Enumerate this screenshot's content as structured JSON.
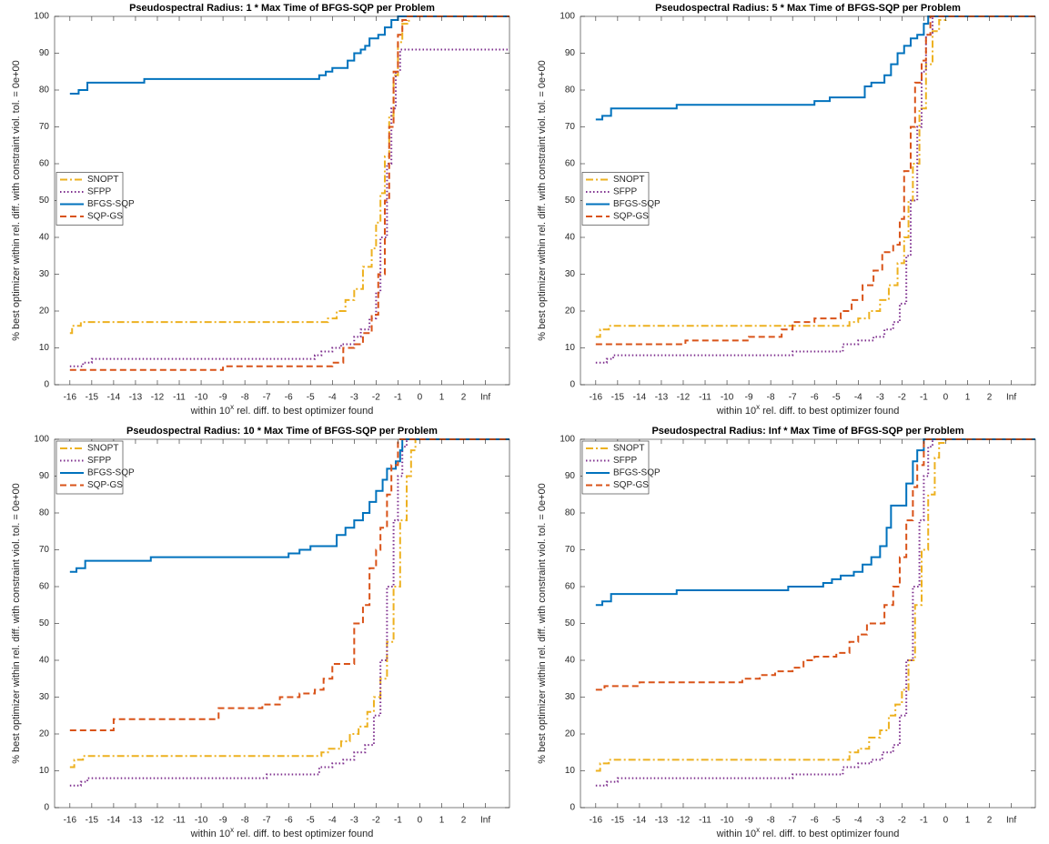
{
  "chart_data": [
    {
      "type": "line",
      "title": "Pseudospectral Radius: 1 * Max Time of BFGS-SQP per Problem",
      "xlabel": [
        "within 10",
        "x",
        " rel. diff. to best optimizer found"
      ],
      "ylabel": "% best optimizer within rel. diff. with constraint viol. tol. = 0e+00",
      "xlim": [
        -16.7,
        4.1
      ],
      "ylim": [
        0,
        100
      ],
      "xticks": [
        -16,
        -15,
        -14,
        -13,
        -12,
        -11,
        -10,
        -9,
        -8,
        -7,
        -6,
        -5,
        -4,
        -3,
        -2,
        -1,
        0,
        1,
        2,
        {
          "value": 3,
          "label": "Inf"
        }
      ],
      "yticks": [
        0,
        10,
        20,
        30,
        40,
        50,
        60,
        70,
        80,
        90,
        100
      ],
      "legend": "west",
      "series": [
        {
          "name": "SNOPT",
          "color": "#EDB120",
          "linestyle": "-.",
          "x": [
            -16,
            -15.9,
            -15.5,
            -4.8,
            -4.2,
            -3.8,
            -3.4,
            -3,
            -2.6,
            -2.2,
            -2,
            -1.8,
            -1.6,
            -1.4,
            -1.2,
            -1,
            -0.8,
            -0.5,
            4.1
          ],
          "values": [
            14,
            16,
            17,
            17,
            18,
            20,
            23,
            26,
            32,
            37,
            44,
            52,
            62,
            73,
            84,
            93,
            98,
            100,
            100
          ]
        },
        {
          "name": "SFPP",
          "color": "#7E2F8E",
          "linestyle": ":",
          "x": [
            -16,
            -15.4,
            -15,
            -5,
            -4.8,
            -4.5,
            -4,
            -3.6,
            -3,
            -2.7,
            -2.3,
            -2,
            -1.8,
            -1.5,
            -1.3,
            -1.1,
            -0.9,
            4.1
          ],
          "values": [
            5,
            6,
            7,
            7,
            8,
            9,
            10,
            11,
            13,
            15,
            18,
            25,
            40,
            60,
            75,
            85,
            91,
            91
          ]
        },
        {
          "name": "BFGS-SQP",
          "color": "#0072BD",
          "linestyle": "-",
          "x": [
            -16,
            -15.6,
            -15.2,
            -12.6,
            -4.9,
            -4.6,
            -4.3,
            -4,
            -3.5,
            -3.3,
            -3,
            -2.7,
            -2.5,
            -2.3,
            -1.9,
            -1.6,
            -1.3,
            -1,
            4.1
          ],
          "values": [
            79,
            80,
            82,
            83,
            83,
            84,
            85,
            86,
            86,
            88,
            90,
            91,
            92,
            94,
            95,
            97,
            99,
            100,
            100
          ]
        },
        {
          "name": "SQP-GS",
          "color": "#D95319",
          "linestyle": "--",
          "x": [
            -16,
            -9.2,
            -9,
            -4.8,
            -4,
            -3.7,
            -3.5,
            -3,
            -2.6,
            -2.2,
            -1.9,
            -1.6,
            -1.4,
            -1.2,
            -1,
            -0.8,
            -0.6,
            4.1
          ],
          "values": [
            4,
            4,
            5,
            5,
            6,
            6,
            10,
            11,
            14,
            19,
            30,
            50,
            70,
            85,
            95,
            99,
            100,
            100
          ]
        }
      ]
    },
    {
      "type": "line",
      "title": "Pseudospectral Radius: 5 * Max Time of BFGS-SQP per Problem",
      "xlabel": [
        "within 10",
        "x",
        " rel. diff. to best optimizer found"
      ],
      "ylabel": "% best optimizer within rel. diff. with constraint viol. tol. = 0e+00",
      "xlim": [
        -16.7,
        4.1
      ],
      "ylim": [
        0,
        100
      ],
      "xticks": [
        -16,
        -15,
        -14,
        -13,
        -12,
        -11,
        -10,
        -9,
        -8,
        -7,
        -6,
        -5,
        -4,
        -3,
        -2,
        -1,
        0,
        1,
        2,
        {
          "value": 3,
          "label": "Inf"
        }
      ],
      "yticks": [
        0,
        10,
        20,
        30,
        40,
        50,
        60,
        70,
        80,
        90,
        100
      ],
      "legend": "west",
      "series": [
        {
          "name": "SNOPT",
          "color": "#EDB120",
          "linestyle": "-.",
          "x": [
            -16,
            -15.8,
            -15.4,
            -4.8,
            -4.4,
            -4,
            -3.5,
            -3,
            -2.6,
            -2.2,
            -1.9,
            -1.7,
            -1.5,
            -1.2,
            -0.9,
            -0.6,
            -0.3,
            0,
            4.1
          ],
          "values": [
            13,
            15,
            16,
            16,
            17,
            18,
            20,
            23,
            27,
            33,
            40,
            50,
            60,
            75,
            87,
            96,
            99,
            100,
            100
          ]
        },
        {
          "name": "SFPP",
          "color": "#7E2F8E",
          "linestyle": ":",
          "x": [
            -16,
            -15.5,
            -15.2,
            -7.2,
            -7,
            -4.9,
            -4.7,
            -4,
            -3.3,
            -2.8,
            -2.4,
            -2.1,
            -1.8,
            -1.6,
            -1.3,
            -1.1,
            -0.9,
            -0.6,
            4.1
          ],
          "values": [
            6,
            7,
            8,
            8,
            9,
            9,
            11,
            12,
            13,
            15,
            17,
            22,
            35,
            50,
            70,
            85,
            95,
            100,
            100
          ]
        },
        {
          "name": "BFGS-SQP",
          "color": "#0072BD",
          "linestyle": "-",
          "x": [
            -16,
            -15.7,
            -15.3,
            -12.5,
            -12.3,
            -6.2,
            -6,
            -5.3,
            -4,
            -3.7,
            -3.4,
            -2.8,
            -2.5,
            -2.2,
            -1.9,
            -1.6,
            -1.3,
            -1,
            -0.8,
            4.1
          ],
          "values": [
            72,
            73,
            75,
            75,
            76,
            76,
            77,
            78,
            78,
            81,
            82,
            84,
            87,
            90,
            92,
            94,
            95,
            98,
            100,
            100
          ]
        },
        {
          "name": "SQP-GS",
          "color": "#D95319",
          "linestyle": "--",
          "x": [
            -16,
            -12.1,
            -11.9,
            -9.5,
            -9,
            -7.5,
            -7,
            -6,
            -5.2,
            -4.8,
            -4.3,
            -3.8,
            -3.3,
            -2.9,
            -2.4,
            -2.1,
            -1.9,
            -1.6,
            -1.4,
            -1.1,
            -0.9,
            -0.7,
            4.1
          ],
          "values": [
            11,
            11,
            12,
            12,
            13,
            15,
            17,
            18,
            18,
            20,
            23,
            27,
            31,
            36,
            38,
            45,
            58,
            70,
            82,
            88,
            95,
            100,
            100
          ]
        }
      ]
    },
    {
      "type": "line",
      "title": "Pseudospectral Radius: 10 * Max Time of BFGS-SQP per Problem",
      "xlabel": [
        "within 10",
        "x",
        " rel. diff. to best optimizer found"
      ],
      "ylabel": "% best optimizer within rel. diff. with constraint viol. tol. = 0e+00",
      "xlim": [
        -16.7,
        4.1
      ],
      "ylim": [
        0,
        100
      ],
      "xticks": [
        -16,
        -15,
        -14,
        -13,
        -12,
        -11,
        -10,
        -9,
        -8,
        -7,
        -6,
        -5,
        -4,
        -3,
        -2,
        -1,
        0,
        1,
        2,
        {
          "value": 3,
          "label": "Inf"
        }
      ],
      "yticks": [
        0,
        10,
        20,
        30,
        40,
        50,
        60,
        70,
        80,
        90,
        100
      ],
      "legend": "northwest",
      "series": [
        {
          "name": "SNOPT",
          "color": "#EDB120",
          "linestyle": "-.",
          "x": [
            -16,
            -15.8,
            -15.4,
            -4.8,
            -4.5,
            -4.2,
            -3.6,
            -3.2,
            -2.8,
            -2.4,
            -2.1,
            -1.8,
            -1.5,
            -1.2,
            -0.9,
            -0.6,
            -0.4,
            -0.2,
            4.1
          ],
          "values": [
            11,
            13,
            14,
            14,
            15,
            16,
            18,
            20,
            22,
            26,
            30,
            35,
            45,
            60,
            78,
            90,
            97,
            100,
            100
          ]
        },
        {
          "name": "SFPP",
          "color": "#7E2F8E",
          "linestyle": ":",
          "x": [
            -16,
            -15.5,
            -15.2,
            -7.2,
            -7,
            -4.8,
            -4.6,
            -4,
            -3.5,
            -3,
            -2.5,
            -2.1,
            -1.8,
            -1.5,
            -1.2,
            -1,
            -0.8,
            -0.6,
            4.1
          ],
          "values": [
            6,
            7,
            8,
            8,
            9,
            9,
            11,
            12,
            13,
            15,
            17,
            25,
            40,
            60,
            78,
            90,
            98,
            100,
            100
          ]
        },
        {
          "name": "BFGS-SQP",
          "color": "#0072BD",
          "linestyle": "-",
          "x": [
            -16,
            -15.7,
            -15.3,
            -12.5,
            -12.3,
            -6.4,
            -6,
            -5.5,
            -5,
            -4,
            -3.8,
            -3.4,
            -3,
            -2.6,
            -2.3,
            -2,
            -1.7,
            -1.5,
            -1.1,
            -0.9,
            -0.8,
            4.1
          ],
          "values": [
            64,
            65,
            67,
            67,
            68,
            68,
            69,
            70,
            71,
            71,
            74,
            76,
            78,
            80,
            83,
            86,
            89,
            92,
            94,
            97,
            100,
            100
          ]
        },
        {
          "name": "SQP-GS",
          "color": "#D95319",
          "linestyle": "--",
          "x": [
            -16,
            -14.2,
            -14,
            -9.5,
            -9.2,
            -7.6,
            -7.2,
            -6.4,
            -5.5,
            -4.8,
            -4.4,
            -4,
            -3.3,
            -3,
            -2.6,
            -2.3,
            -2,
            -1.8,
            -1.5,
            -1.3,
            -1,
            4.1
          ],
          "values": [
            21,
            21,
            24,
            24,
            27,
            27,
            28,
            30,
            31,
            32,
            35,
            39,
            39,
            50,
            55,
            65,
            70,
            76,
            85,
            93,
            100,
            100
          ]
        }
      ]
    },
    {
      "type": "line",
      "title": "Pseudospectral Radius: Inf * Max Time of BFGS-SQP per Problem",
      "xlabel": [
        "within 10",
        "x",
        " rel. diff. to best optimizer found"
      ],
      "ylabel": "% best optimizer within rel. diff. with constraint viol. tol. = 0e+00",
      "xlim": [
        -16.7,
        4.1
      ],
      "ylim": [
        0,
        100
      ],
      "xticks": [
        -16,
        -15,
        -14,
        -13,
        -12,
        -11,
        -10,
        -9,
        -8,
        -7,
        -6,
        -5,
        -4,
        -3,
        -2,
        -1,
        0,
        1,
        2,
        {
          "value": 3,
          "label": "Inf"
        }
      ],
      "yticks": [
        0,
        10,
        20,
        30,
        40,
        50,
        60,
        70,
        80,
        90,
        100
      ],
      "legend": "northwest",
      "series": [
        {
          "name": "SNOPT",
          "color": "#EDB120",
          "linestyle": "-.",
          "x": [
            -16,
            -15.8,
            -15.4,
            -4.8,
            -4.4,
            -4,
            -3.5,
            -3,
            -2.6,
            -2.3,
            -2,
            -1.7,
            -1.4,
            -1.1,
            -0.8,
            -0.5,
            -0.3,
            0,
            4.1
          ],
          "values": [
            10,
            12,
            13,
            13,
            15,
            16,
            19,
            21,
            25,
            28,
            32,
            40,
            55,
            70,
            85,
            95,
            99,
            100,
            100
          ]
        },
        {
          "name": "SFPP",
          "color": "#7E2F8E",
          "linestyle": ":",
          "x": [
            -16,
            -15.5,
            -15,
            -7.3,
            -7,
            -4.9,
            -4.7,
            -4,
            -3.4,
            -2.9,
            -2.4,
            -2.1,
            -1.8,
            -1.5,
            -1.2,
            -1,
            -0.8,
            -0.6,
            4.1
          ],
          "values": [
            6,
            7,
            8,
            8,
            9,
            9,
            11,
            12,
            13,
            15,
            17,
            25,
            40,
            60,
            78,
            90,
            98,
            100,
            100
          ]
        },
        {
          "name": "BFGS-SQP",
          "color": "#0072BD",
          "linestyle": "-",
          "x": [
            -16,
            -15.7,
            -15.3,
            -12.5,
            -12.3,
            -7.5,
            -7.2,
            -6,
            -5.6,
            -5.2,
            -4.8,
            -4.2,
            -3.8,
            -3.4,
            -3,
            -2.7,
            -2.5,
            -2,
            -1.8,
            -1.5,
            -1.3,
            -1,
            4.1
          ],
          "values": [
            55,
            56,
            58,
            58,
            59,
            59,
            60,
            60,
            61,
            62,
            63,
            64,
            66,
            68,
            71,
            76,
            82,
            82,
            88,
            94,
            97,
            100,
            100
          ]
        },
        {
          "name": "SQP-GS",
          "color": "#D95319",
          "linestyle": "--",
          "x": [
            -16,
            -15.6,
            -14.1,
            -14,
            -9.8,
            -9.3,
            -8.5,
            -7.8,
            -7,
            -6.5,
            -6,
            -5,
            -4.4,
            -4,
            -3.6,
            -3,
            -2.8,
            -2.4,
            -2.1,
            -1.8,
            -1.5,
            -1.3,
            -1,
            4.1
          ],
          "values": [
            32,
            33,
            33,
            34,
            34,
            35,
            36,
            37,
            38,
            40,
            41,
            42,
            45,
            47,
            50,
            50,
            55,
            60,
            68,
            78,
            87,
            93,
            100,
            100
          ]
        }
      ]
    }
  ]
}
